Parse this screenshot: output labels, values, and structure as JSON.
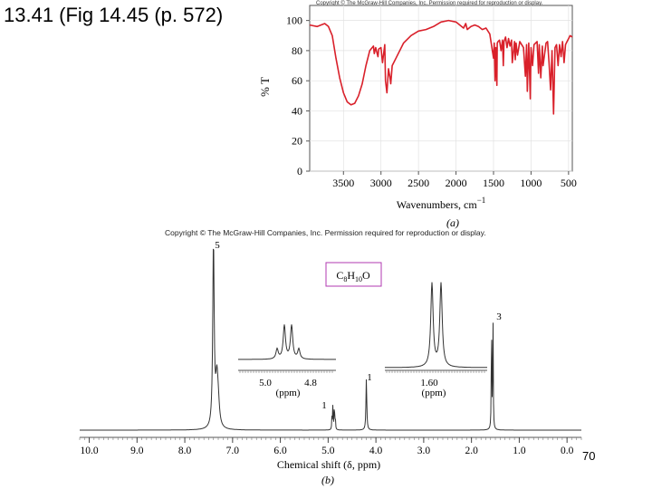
{
  "slide": {
    "title": "13.41 (Fig 14.45 (p. 572)",
    "page_number": "70"
  },
  "copyright_ir": "Copyright © The McGraw-Hill Companies, Inc. Permission required for reproduction or display.",
  "copyright_nmr": "Copyright © The McGraw-Hill Companies, Inc. Permission required for reproduction or display.",
  "chart_data": [
    {
      "type": "line",
      "panel_label": "(a)",
      "xlabel_text": "Wavenumbers, cm",
      "xlabel_sup": "−1",
      "ylabel": "% T",
      "xlim": [
        3950,
        450
      ],
      "ylim": [
        0,
        110
      ],
      "xticks": [
        3500,
        3000,
        2500,
        2000,
        1500,
        1000,
        500
      ],
      "yticks": [
        0,
        20,
        40,
        60,
        80,
        100
      ],
      "grid": true,
      "line_color": "#d9202a",
      "series": [
        {
          "x": [
            3950,
            3850,
            3750,
            3700,
            3650,
            3600,
            3550,
            3500,
            3450,
            3400,
            3350,
            3300,
            3250,
            3200,
            3150,
            3100,
            3090,
            3070,
            3060,
            3040,
            3030,
            3000,
            2980,
            2950,
            2940,
            2920,
            2900,
            2880,
            2870,
            2850,
            2800,
            2700,
            2600,
            2500,
            2400,
            2300,
            2200,
            2100,
            2000,
            1950,
            1900,
            1870,
            1850,
            1800,
            1750,
            1700,
            1650,
            1600,
            1550,
            1500,
            1490,
            1480,
            1470,
            1455,
            1450,
            1440,
            1420,
            1400,
            1380,
            1370,
            1360,
            1340,
            1320,
            1300,
            1280,
            1260,
            1250,
            1220,
            1210,
            1200,
            1180,
            1150,
            1100,
            1075,
            1060,
            1050,
            1030,
            1010,
            1000,
            980,
            960,
            920,
            900,
            890,
            870,
            850,
            840,
            800,
            780,
            760,
            740,
            720,
            700,
            690,
            680,
            660,
            640,
            620,
            600,
            580,
            560,
            540,
            520,
            500,
            480,
            450
          ],
          "y": [
            97,
            96,
            98,
            96,
            90,
            75,
            62,
            52,
            46,
            44,
            45,
            50,
            58,
            70,
            80,
            83,
            78,
            82,
            80,
            76,
            81,
            82,
            72,
            84,
            60,
            52,
            68,
            62,
            58,
            70,
            75,
            85,
            90,
            93,
            94,
            96,
            99,
            100,
            99,
            97,
            95,
            98,
            94,
            96,
            97,
            96,
            94,
            95,
            91,
            75,
            85,
            60,
            82,
            57,
            85,
            86,
            87,
            80,
            87,
            70,
            86,
            89,
            82,
            88,
            83,
            87,
            72,
            86,
            74,
            85,
            77,
            86,
            82,
            63,
            84,
            53,
            85,
            48,
            82,
            70,
            84,
            86,
            65,
            84,
            62,
            83,
            70,
            85,
            86,
            72,
            54,
            80,
            38,
            60,
            82,
            84,
            70,
            84,
            76,
            86,
            72,
            84,
            86,
            88,
            90,
            89
          ]
        }
      ]
    },
    {
      "type": "line",
      "panel_label": "(b)",
      "xlabel": "Chemical shift (δ, ppm)",
      "xlim": [
        10.2,
        -0.3
      ],
      "xticks": [
        10.0,
        9.0,
        8.0,
        7.0,
        6.0,
        5.0,
        4.0,
        3.0,
        2.0,
        1.0,
        0.0
      ],
      "formula": {
        "base": "C",
        "n1": "8",
        "h": "H",
        "n2": "10",
        "o": "O"
      },
      "peaks": [
        {
          "shift": 7.4,
          "integration": "5"
        },
        {
          "shift": 4.88,
          "integration": "1"
        },
        {
          "shift": 4.2,
          "integration": "1"
        },
        {
          "shift": 1.57,
          "integration": "3"
        }
      ],
      "insets": [
        {
          "name": "quartet-inset",
          "xticks": [
            "5.0",
            "4.8"
          ],
          "xlabel": "(ppm)",
          "multiplicity": "quartet"
        },
        {
          "name": "doublet-inset",
          "xticks": [
            "1.60"
          ],
          "xlabel": "(ppm)",
          "multiplicity": "doublet"
        }
      ]
    }
  ]
}
